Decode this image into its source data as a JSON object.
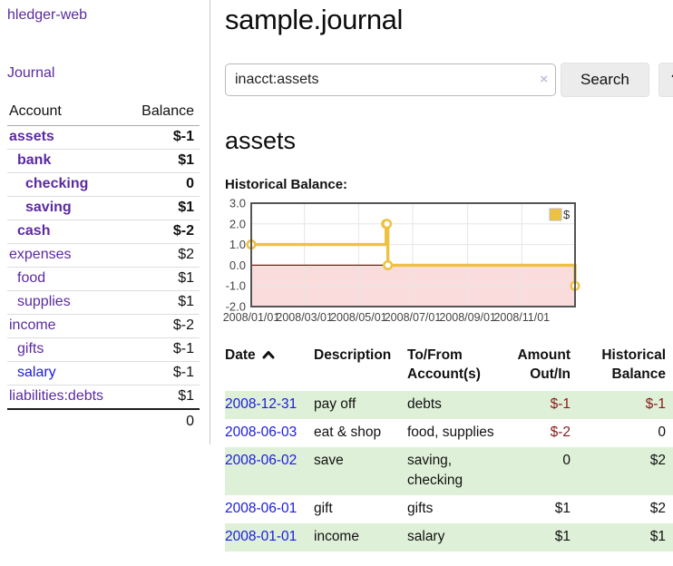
{
  "app": {
    "brand": "hledger-web",
    "nav_journal": "Journal"
  },
  "colors": {
    "link_purple": "#5b2aa0",
    "link_blue": "#1b1be0",
    "negative_strong": "#8b1a1a",
    "negative_soft": "#c0717e",
    "row_green": "#dff0d8",
    "chart_line": "#EDC240",
    "chart_negative_region": "#fbdcdc",
    "chart_zero_line": "#8f1a1a"
  },
  "sidebar": {
    "table": {
      "col_account": "Account",
      "col_balance": "Balance"
    },
    "accounts": [
      {
        "name": "assets",
        "indent": 0,
        "bold": true,
        "balance": "$-1"
      },
      {
        "name": "bank",
        "indent": 1,
        "bold": true,
        "balance": "$1"
      },
      {
        "name": "checking",
        "indent": 2,
        "bold": true,
        "balance": "0"
      },
      {
        "name": "saving",
        "indent": 2,
        "bold": true,
        "balance": "$1"
      },
      {
        "name": "cash",
        "indent": 1,
        "bold": true,
        "balance": "$-2"
      },
      {
        "name": "expenses",
        "indent": 0,
        "bold": false,
        "balance": "$2"
      },
      {
        "name": "food",
        "indent": 1,
        "bold": false,
        "balance": "$1"
      },
      {
        "name": "supplies",
        "indent": 1,
        "bold": false,
        "balance": "$1"
      },
      {
        "name": "income",
        "indent": 0,
        "bold": false,
        "balance": "$-2"
      },
      {
        "name": "gifts",
        "indent": 1,
        "bold": false,
        "balance": "$-1"
      },
      {
        "name": "salary",
        "indent": 1,
        "bold": false,
        "balance": "$-1",
        "blue": true
      },
      {
        "name": "liabilities:debts",
        "indent": 0,
        "bold": false,
        "balance": "$1"
      }
    ],
    "total": "0"
  },
  "header": {
    "title": "sample.journal"
  },
  "search": {
    "value": "inacct:assets",
    "clear_icon": "×",
    "button": "Search",
    "help_button": "?"
  },
  "account_page": {
    "heading": "assets",
    "chart_label": "Historical Balance:"
  },
  "chart_data": {
    "type": "line",
    "title": "Historical Balance:",
    "step": true,
    "series": [
      {
        "name": "$",
        "color": "#EDC240",
        "points": [
          [
            "2008-01-01",
            1
          ],
          [
            "2008-06-01",
            2
          ],
          [
            "2008-06-02",
            2
          ],
          [
            "2008-06-03",
            0
          ],
          [
            "2008-12-31",
            -1
          ]
        ]
      }
    ],
    "xlim": [
      "2008-01-01",
      "2008-12-31"
    ],
    "ylim": [
      -2,
      3
    ],
    "y_ticks": [
      -2.0,
      -1.0,
      0.0,
      1.0,
      2.0,
      3.0
    ],
    "x_ticks": [
      "2008/01/01",
      "2008/03/01",
      "2008/05/01",
      "2008/07/01",
      "2008/09/01",
      "2008/11/01"
    ],
    "grid": true,
    "legend_position": "top-right",
    "negative_region_color": "#fbdcdc",
    "zero_line_color": "#8f1a1a"
  },
  "register": {
    "headers": [
      "Date",
      "Description",
      "To/From Account(s)",
      "Amount Out/In",
      "Historical Balance"
    ],
    "rows": [
      {
        "date": "2008-12-31",
        "description": "pay off",
        "accounts": "debts",
        "amount": "$-1",
        "balance": "$-1"
      },
      {
        "date": "2008-06-03",
        "description": "eat & shop",
        "accounts": "food, supplies",
        "amount": "$-2",
        "balance": "0"
      },
      {
        "date": "2008-06-02",
        "description": "save",
        "accounts": "saving, checking",
        "amount": "0",
        "balance": "$2"
      },
      {
        "date": "2008-06-01",
        "description": "gift",
        "accounts": "gifts",
        "amount": "$1",
        "balance": "$2"
      },
      {
        "date": "2008-01-01",
        "description": "income",
        "accounts": "salary",
        "amount": "$1",
        "balance": "$1"
      }
    ]
  }
}
